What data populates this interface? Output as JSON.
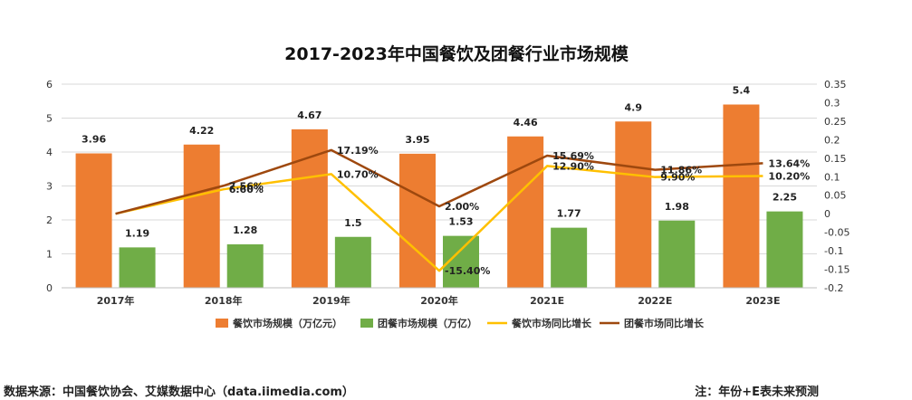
{
  "footer": {
    "source": "数据来源：中国餐饮协会、艾媒数据中心（data.iimedia.com）",
    "note": "注：年份+E表未来预测"
  },
  "chart_data": {
    "type": "bar",
    "title": "2017-2023年中国餐饮及团餐行业市场规模",
    "categories": [
      "2017年",
      "2018年",
      "2019年",
      "2020年",
      "2021E",
      "2022E",
      "2023E"
    ],
    "y_left": {
      "range": [
        0,
        6
      ],
      "ticks": [
        "0",
        "1",
        "2",
        "3",
        "4",
        "5",
        "6"
      ]
    },
    "y_right": {
      "range": [
        -0.2,
        0.35
      ],
      "ticks": [
        "-0.2",
        "-0.15",
        "-0.1",
        "-0.05",
        "0",
        "0.05",
        "0.1",
        "0.15",
        "0.2",
        "0.25",
        "0.3",
        "0.35"
      ]
    },
    "grid": true,
    "legend_position": "bottom",
    "series": [
      {
        "name": "餐饮市场规模（万亿元）",
        "type": "bar",
        "axis": "left",
        "color": "#ED7D31",
        "values": [
          3.96,
          4.22,
          4.67,
          3.95,
          4.46,
          4.9,
          5.4
        ],
        "labels": [
          "3.96",
          "4.22",
          "4.67",
          "3.95",
          "4.46",
          "4.9",
          "5.4"
        ]
      },
      {
        "name": "团餐市场规模（万亿）",
        "type": "bar",
        "axis": "left",
        "color": "#70AD47",
        "values": [
          1.19,
          1.28,
          1.5,
          1.53,
          1.77,
          1.98,
          2.25
        ],
        "labels": [
          "1.19",
          "1.28",
          "1.5",
          "1.53",
          "1.77",
          "1.98",
          "2.25"
        ]
      },
      {
        "name": "餐饮市场同比增长",
        "type": "line",
        "axis": "right",
        "color": "#FFC000",
        "values": [
          0,
          0.066,
          0.107,
          -0.154,
          0.129,
          0.099,
          0.102
        ],
        "labels": [
          "",
          "6.60%",
          "10.70%",
          "-15.40%",
          "12.90%",
          "9.90%",
          "10.20%"
        ]
      },
      {
        "name": "团餐市场同比增长",
        "type": "line",
        "axis": "right",
        "color": "#9E480E",
        "values": [
          0,
          0.0756,
          0.1719,
          0.02,
          0.1569,
          0.1186,
          0.1364
        ],
        "labels": [
          "",
          "7.56%",
          "17.19%",
          "2.00%",
          "15.69%",
          "11.86%",
          "13.64%"
        ]
      }
    ]
  }
}
